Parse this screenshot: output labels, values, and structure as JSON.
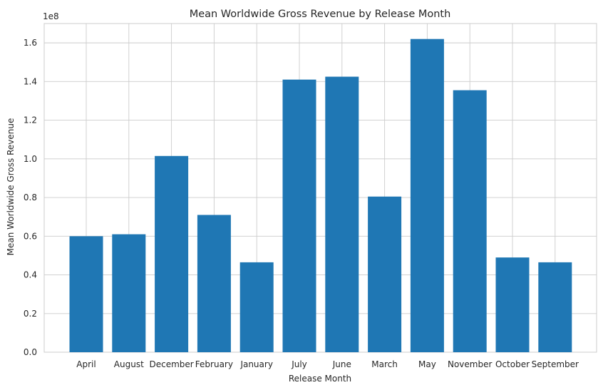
{
  "chart_data": {
    "type": "bar",
    "title": "Mean Worldwide Gross Revenue by Release Month",
    "xlabel": "Release Month",
    "ylabel": "Mean Worldwide Gross Revenue",
    "y_scale_label": "1e8",
    "categories": [
      "April",
      "August",
      "December",
      "February",
      "January",
      "July",
      "June",
      "March",
      "May",
      "November",
      "October",
      "September"
    ],
    "values": [
      60000000,
      61000000,
      101500000,
      71000000,
      46500000,
      141000000,
      142500000,
      80500000,
      162000000,
      135500000,
      49000000,
      46500000
    ],
    "ylim": [
      0,
      170000000
    ],
    "yticks": [
      0,
      20000000,
      40000000,
      60000000,
      80000000,
      100000000,
      120000000,
      140000000,
      160000000
    ],
    "ytick_labels": [
      "0.0",
      "0.2",
      "0.4",
      "0.6",
      "0.8",
      "1.0",
      "1.2",
      "1.4",
      "1.6"
    ],
    "grid": true,
    "bar_color": "#1f77b4",
    "grid_color": "#cccccc"
  }
}
